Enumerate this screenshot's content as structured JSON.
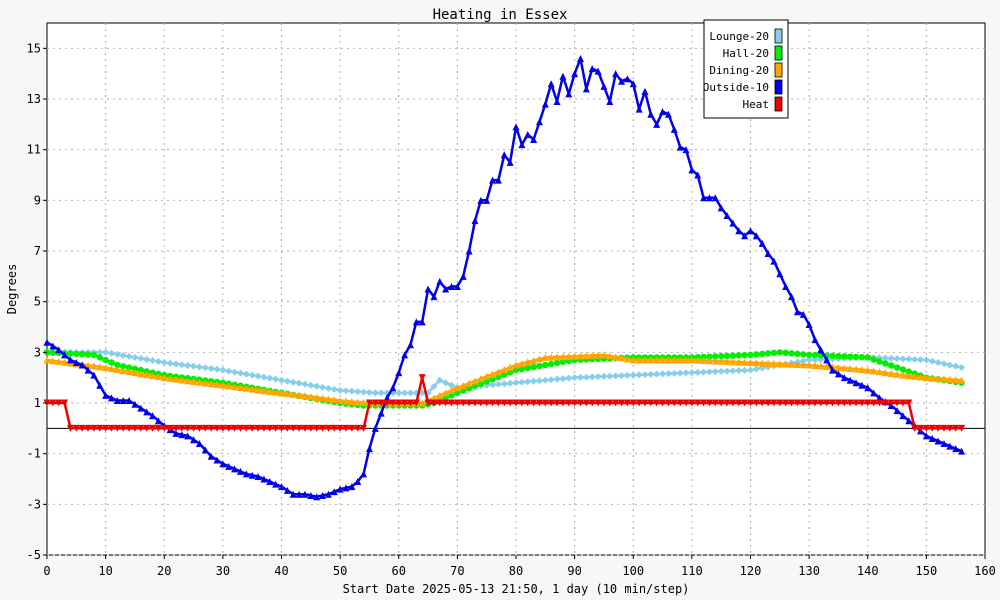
{
  "chart_data": {
    "type": "line",
    "title": "Heating in Essex",
    "xlabel": "Start Date 2025-05-13 21:50, 1 day (10 min/step)",
    "ylabel": "Degrees",
    "xlim": [
      0,
      160
    ],
    "ylim": [
      -5,
      16
    ],
    "x_ticks": [
      "0",
      "10",
      "20",
      "30",
      "40",
      "50",
      "60",
      "70",
      "80",
      "90",
      "100",
      "110",
      "120",
      "130",
      "140",
      "150",
      "160"
    ],
    "y_ticks": [
      "-5",
      "-3",
      "-1",
      "1",
      "3",
      "5",
      "7",
      "9",
      "11",
      "13",
      "15"
    ],
    "grid": true,
    "legend_position": "top-right",
    "series": [
      {
        "name": "Lounge-20",
        "color": "#87ceeb",
        "marker": "diamond",
        "points": [
          [
            0,
            3.0
          ],
          [
            10,
            3.0
          ],
          [
            20,
            2.6
          ],
          [
            30,
            2.3
          ],
          [
            40,
            1.9
          ],
          [
            50,
            1.5
          ],
          [
            56,
            1.4
          ],
          [
            62,
            1.4
          ],
          [
            65,
            1.4
          ],
          [
            67,
            1.9
          ],
          [
            70,
            1.6
          ],
          [
            80,
            1.8
          ],
          [
            90,
            2.0
          ],
          [
            100,
            2.1
          ],
          [
            110,
            2.2
          ],
          [
            120,
            2.3
          ],
          [
            125,
            2.5
          ],
          [
            130,
            2.7
          ],
          [
            140,
            2.8
          ],
          [
            150,
            2.7
          ],
          [
            156,
            2.4
          ]
        ]
      },
      {
        "name": "Hall-20",
        "color": "#00ee00",
        "marker": "circle",
        "points": [
          [
            0,
            3.0
          ],
          [
            8,
            2.9
          ],
          [
            12,
            2.5
          ],
          [
            20,
            2.1
          ],
          [
            30,
            1.8
          ],
          [
            40,
            1.4
          ],
          [
            50,
            1.0
          ],
          [
            54,
            0.9
          ],
          [
            60,
            0.9
          ],
          [
            64,
            0.9
          ],
          [
            66,
            1.0
          ],
          [
            70,
            1.4
          ],
          [
            80,
            2.3
          ],
          [
            90,
            2.7
          ],
          [
            100,
            2.8
          ],
          [
            110,
            2.8
          ],
          [
            120,
            2.9
          ],
          [
            125,
            3.0
          ],
          [
            130,
            2.9
          ],
          [
            140,
            2.8
          ],
          [
            150,
            2.0
          ],
          [
            156,
            1.8
          ]
        ]
      },
      {
        "name": "Dining-20",
        "color": "#ffa500",
        "marker": "triangle",
        "points": [
          [
            0,
            2.7
          ],
          [
            10,
            2.4
          ],
          [
            20,
            2.0
          ],
          [
            30,
            1.7
          ],
          [
            40,
            1.4
          ],
          [
            50,
            1.1
          ],
          [
            55,
            1.0
          ],
          [
            60,
            1.0
          ],
          [
            64,
            1.0
          ],
          [
            66,
            1.2
          ],
          [
            70,
            1.6
          ],
          [
            80,
            2.5
          ],
          [
            85,
            2.8
          ],
          [
            95,
            2.9
          ],
          [
            100,
            2.7
          ],
          [
            110,
            2.7
          ],
          [
            120,
            2.6
          ],
          [
            130,
            2.5
          ],
          [
            140,
            2.3
          ],
          [
            146,
            2.1
          ],
          [
            150,
            2.0
          ],
          [
            156,
            1.9
          ]
        ]
      },
      {
        "name": "Outside-10",
        "color": "#0000ee",
        "marker": "triangle",
        "points": [
          [
            0,
            3.4
          ],
          [
            2,
            3.1
          ],
          [
            4,
            2.7
          ],
          [
            6,
            2.5
          ],
          [
            8,
            2.1
          ],
          [
            10,
            1.3
          ],
          [
            12,
            1.1
          ],
          [
            14,
            1.1
          ],
          [
            16,
            0.8
          ],
          [
            18,
            0.5
          ],
          [
            20,
            0.1
          ],
          [
            22,
            -0.2
          ],
          [
            24,
            -0.3
          ],
          [
            26,
            -0.6
          ],
          [
            28,
            -1.1
          ],
          [
            30,
            -1.4
          ],
          [
            32,
            -1.6
          ],
          [
            34,
            -1.8
          ],
          [
            36,
            -1.9
          ],
          [
            38,
            -2.1
          ],
          [
            40,
            -2.3
          ],
          [
            42,
            -2.6
          ],
          [
            44,
            -2.6
          ],
          [
            46,
            -2.7
          ],
          [
            48,
            -2.6
          ],
          [
            50,
            -2.4
          ],
          [
            52,
            -2.3
          ],
          [
            53,
            -2.1
          ],
          [
            54,
            -1.8
          ],
          [
            55,
            -0.8
          ],
          [
            56,
            0.0
          ],
          [
            57,
            0.6
          ],
          [
            58,
            1.2
          ],
          [
            59,
            1.6
          ],
          [
            60,
            2.2
          ],
          [
            61,
            2.9
          ],
          [
            62,
            3.3
          ],
          [
            63,
            4.2
          ],
          [
            64,
            4.2
          ],
          [
            65,
            5.5
          ],
          [
            66,
            5.2
          ],
          [
            67,
            5.8
          ],
          [
            68,
            5.5
          ],
          [
            69,
            5.6
          ],
          [
            70,
            5.6
          ],
          [
            71,
            6.0
          ],
          [
            72,
            7.0
          ],
          [
            73,
            8.2
          ],
          [
            74,
            9.0
          ],
          [
            75,
            9.0
          ],
          [
            76,
            9.8
          ],
          [
            77,
            9.8
          ],
          [
            78,
            10.8
          ],
          [
            79,
            10.5
          ],
          [
            80,
            11.9
          ],
          [
            81,
            11.2
          ],
          [
            82,
            11.6
          ],
          [
            83,
            11.4
          ],
          [
            84,
            12.1
          ],
          [
            85,
            12.8
          ],
          [
            86,
            13.6
          ],
          [
            87,
            12.9
          ],
          [
            88,
            13.9
          ],
          [
            89,
            13.2
          ],
          [
            90,
            14.0
          ],
          [
            91,
            14.6
          ],
          [
            92,
            13.4
          ],
          [
            93,
            14.2
          ],
          [
            94,
            14.1
          ],
          [
            95,
            13.5
          ],
          [
            96,
            12.9
          ],
          [
            97,
            14.0
          ],
          [
            98,
            13.7
          ],
          [
            99,
            13.8
          ],
          [
            100,
            13.6
          ],
          [
            101,
            12.6
          ],
          [
            102,
            13.3
          ],
          [
            103,
            12.4
          ],
          [
            104,
            12.0
          ],
          [
            105,
            12.5
          ],
          [
            106,
            12.4
          ],
          [
            107,
            11.8
          ],
          [
            108,
            11.1
          ],
          [
            109,
            11.0
          ],
          [
            110,
            10.2
          ],
          [
            111,
            10.0
          ],
          [
            112,
            9.1
          ],
          [
            113,
            9.1
          ],
          [
            114,
            9.1
          ],
          [
            115,
            8.7
          ],
          [
            116,
            8.4
          ],
          [
            117,
            8.1
          ],
          [
            118,
            7.8
          ],
          [
            119,
            7.6
          ],
          [
            120,
            7.8
          ],
          [
            121,
            7.6
          ],
          [
            122,
            7.3
          ],
          [
            123,
            6.9
          ],
          [
            124,
            6.6
          ],
          [
            125,
            6.1
          ],
          [
            126,
            5.6
          ],
          [
            127,
            5.2
          ],
          [
            128,
            4.6
          ],
          [
            129,
            4.5
          ],
          [
            130,
            4.1
          ],
          [
            131,
            3.5
          ],
          [
            132,
            3.1
          ],
          [
            133,
            2.7
          ],
          [
            134,
            2.3
          ],
          [
            136,
            2.0
          ],
          [
            138,
            1.8
          ],
          [
            140,
            1.6
          ],
          [
            142,
            1.2
          ],
          [
            144,
            0.9
          ],
          [
            146,
            0.5
          ],
          [
            148,
            0.1
          ],
          [
            150,
            -0.3
          ],
          [
            152,
            -0.5
          ],
          [
            154,
            -0.7
          ],
          [
            156,
            -0.9
          ]
        ]
      },
      {
        "name": "Heat",
        "color": "#ee0000",
        "marker": "triangle-down",
        "points": [
          [
            0,
            1
          ],
          [
            3,
            1
          ],
          [
            4,
            0
          ],
          [
            54,
            0
          ],
          [
            55,
            1
          ],
          [
            63,
            1
          ],
          [
            64,
            2
          ],
          [
            65,
            1
          ],
          [
            147,
            1
          ],
          [
            148,
            0
          ],
          [
            156,
            0
          ]
        ]
      }
    ],
    "legend": [
      {
        "label": "Lounge-20",
        "color": "#87ceeb"
      },
      {
        "label": "Hall-20",
        "color": "#00ee00"
      },
      {
        "label": "Dining-20",
        "color": "#ffa500"
      },
      {
        "label": "Outside-10",
        "color": "#0000ee"
      },
      {
        "label": "Heat",
        "color": "#ee0000"
      }
    ]
  }
}
